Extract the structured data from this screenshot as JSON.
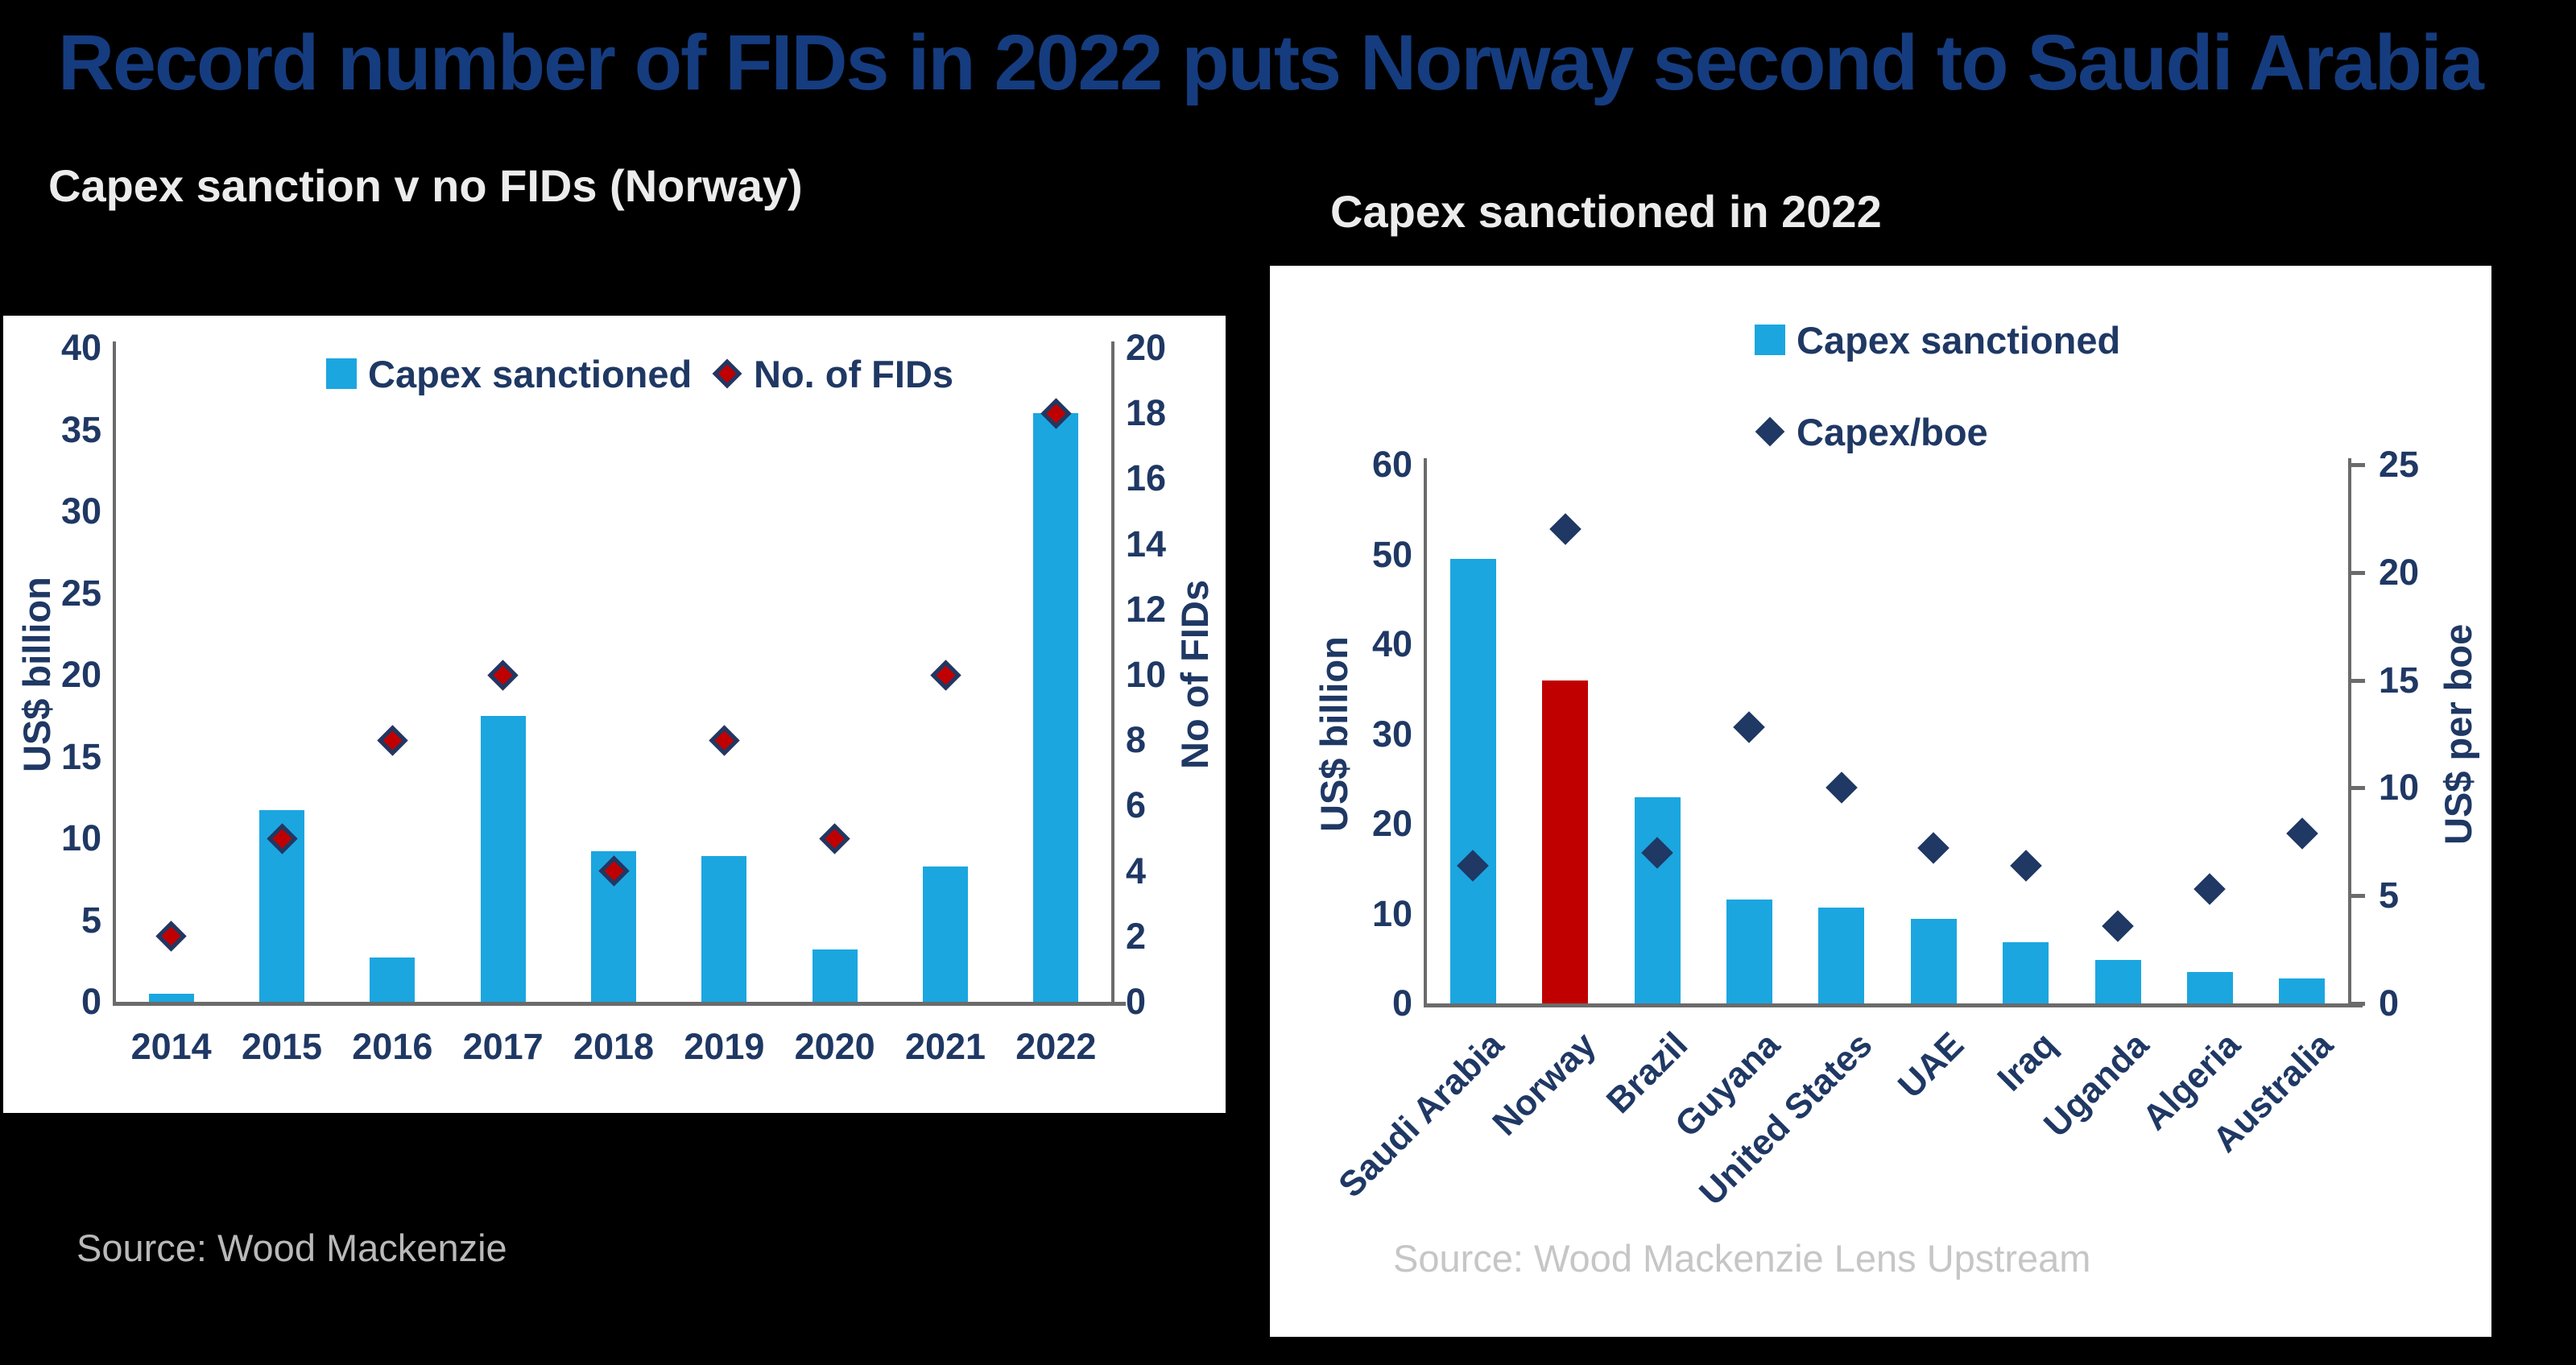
{
  "title": "Record number of FIDs in 2022 puts Norway second to Saudi Arabia",
  "colors": {
    "background": "#000000",
    "panel_white": "#FFFFFF",
    "title_navy": "#153C7F",
    "text_navy": "#1F3864",
    "bar_blue": "#1BA6E0",
    "highlight_red": "#C00000",
    "marker_navy": "#1F3864",
    "axis_gray": "#6B6B6B",
    "source_gray_on_black": "#B9B9B9",
    "source_gray_on_white": "#C6C6C6"
  },
  "chart_data": [
    {
      "type": "bar",
      "title": "Capex sanction v no FIDs (Norway)",
      "categories": [
        "2014",
        "2015",
        "2016",
        "2017",
        "2018",
        "2019",
        "2020",
        "2021",
        "2022"
      ],
      "series": [
        {
          "name": "Capex sanctioned",
          "kind": "bar",
          "axis": "left",
          "values": [
            0.5,
            11.7,
            2.7,
            17.5,
            9.2,
            8.9,
            3.2,
            8.3,
            36
          ],
          "color": "#1BA6E0"
        },
        {
          "name": "No. of FIDs",
          "kind": "scatter",
          "marker": "diamond",
          "axis": "right",
          "values": [
            2,
            5,
            8,
            10,
            4,
            8,
            5,
            10,
            18
          ],
          "fill": "#C00000",
          "border": "#1F3864"
        }
      ],
      "left_axis": {
        "label": "US$ billion",
        "min": 0,
        "max": 40,
        "step": 5
      },
      "right_axis": {
        "label": "No of FIDs",
        "min": 0,
        "max": 20,
        "step": 2
      },
      "legend_position": "top-center",
      "grid": false,
      "source": "Source: Wood Mackenzie"
    },
    {
      "type": "bar",
      "title": "Capex sanctioned in 2022",
      "categories": [
        "Saudi Arabia",
        "Norway",
        "Brazil",
        "Guyana",
        "United States",
        "UAE",
        "Iraq",
        "Uganda",
        "Algeria",
        "Australia"
      ],
      "series": [
        {
          "name": "Capex sanctioned",
          "kind": "bar",
          "axis": "left",
          "values": [
            49.5,
            36,
            23,
            11.6,
            10.7,
            9.4,
            6.8,
            4.8,
            3.5,
            2.8
          ],
          "color": "#1BA6E0",
          "highlight": {
            "index": 1,
            "color": "#C00000",
            "category": "Norway"
          }
        },
        {
          "name": "Capex/boe",
          "kind": "scatter",
          "marker": "diamond",
          "axis": "right",
          "values": [
            6.4,
            22,
            7,
            12.8,
            10,
            7.2,
            6.4,
            3.6,
            5.3,
            7.9
          ],
          "fill": "#1F3864"
        }
      ],
      "left_axis": {
        "label": "US$ billion",
        "min": 0,
        "max": 60,
        "step": 10
      },
      "right_axis": {
        "label": "US$ per boe",
        "min": 0,
        "max": 25,
        "step": 5,
        "ticks": true
      },
      "legend_position": "top-left-stacked",
      "grid": false,
      "source": "Source: Wood Mackenzie Lens Upstream"
    }
  ]
}
